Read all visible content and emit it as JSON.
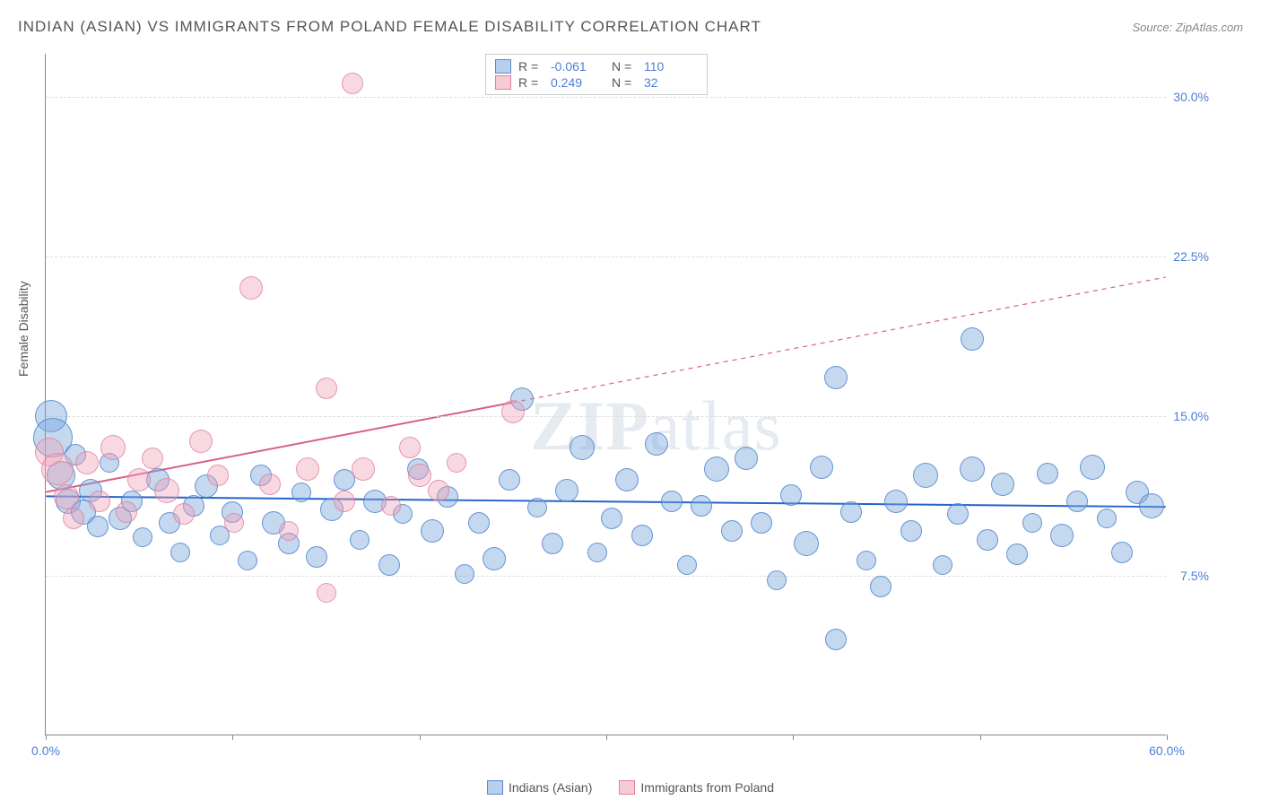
{
  "header": {
    "title": "INDIAN (ASIAN) VS IMMIGRANTS FROM POLAND FEMALE DISABILITY CORRELATION CHART",
    "source": "Source: ZipAtlas.com"
  },
  "chart": {
    "type": "scatter",
    "ylabel": "Female Disability",
    "xlim": [
      0,
      60
    ],
    "ylim": [
      0,
      32
    ],
    "ytick_values": [
      7.5,
      15.0,
      22.5,
      30.0
    ],
    "ytick_labels": [
      "7.5%",
      "15.0%",
      "22.5%",
      "30.0%"
    ],
    "xtick_values": [
      0,
      10,
      20,
      30,
      40,
      50,
      60
    ],
    "xtick_labels": [
      "0.0%",
      "",
      "",
      "",
      "",
      "",
      "60.0%"
    ],
    "background_color": "#ffffff",
    "grid_color": "#dddddd",
    "watermark": "ZIPatlas",
    "series": [
      {
        "name": "Indians (Asian)",
        "color_fill": "#7da8de",
        "color_stroke": "#5082c8",
        "trend": {
          "x1": 0,
          "y1": 11.2,
          "x2": 60,
          "y2": 10.7,
          "color": "#2563c9",
          "width": 2,
          "dash": "none"
        },
        "R": "-0.061",
        "N": "110",
        "points": [
          {
            "x": 0.3,
            "y": 15.0,
            "r": 18
          },
          {
            "x": 0.4,
            "y": 14.0,
            "r": 22
          },
          {
            "x": 0.8,
            "y": 12.2,
            "r": 16
          },
          {
            "x": 1.2,
            "y": 11.0,
            "r": 14
          },
          {
            "x": 1.6,
            "y": 13.2,
            "r": 12
          },
          {
            "x": 2.0,
            "y": 10.5,
            "r": 14
          },
          {
            "x": 2.4,
            "y": 11.5,
            "r": 13
          },
          {
            "x": 2.8,
            "y": 9.8,
            "r": 12
          },
          {
            "x": 3.4,
            "y": 12.8,
            "r": 11
          },
          {
            "x": 4.0,
            "y": 10.2,
            "r": 13
          },
          {
            "x": 4.6,
            "y": 11.0,
            "r": 12
          },
          {
            "x": 5.2,
            "y": 9.3,
            "r": 11
          },
          {
            "x": 6.0,
            "y": 12.0,
            "r": 13
          },
          {
            "x": 6.6,
            "y": 10.0,
            "r": 12
          },
          {
            "x": 7.2,
            "y": 8.6,
            "r": 11
          },
          {
            "x": 7.9,
            "y": 10.8,
            "r": 12
          },
          {
            "x": 8.6,
            "y": 11.7,
            "r": 13
          },
          {
            "x": 9.3,
            "y": 9.4,
            "r": 11
          },
          {
            "x": 10.0,
            "y": 10.5,
            "r": 12
          },
          {
            "x": 10.8,
            "y": 8.2,
            "r": 11
          },
          {
            "x": 11.5,
            "y": 12.2,
            "r": 12
          },
          {
            "x": 12.2,
            "y": 10.0,
            "r": 13
          },
          {
            "x": 13.0,
            "y": 9.0,
            "r": 12
          },
          {
            "x": 13.7,
            "y": 11.4,
            "r": 11
          },
          {
            "x": 14.5,
            "y": 8.4,
            "r": 12
          },
          {
            "x": 15.3,
            "y": 10.6,
            "r": 13
          },
          {
            "x": 16.0,
            "y": 12.0,
            "r": 12
          },
          {
            "x": 16.8,
            "y": 9.2,
            "r": 11
          },
          {
            "x": 17.6,
            "y": 11.0,
            "r": 13
          },
          {
            "x": 18.4,
            "y": 8.0,
            "r": 12
          },
          {
            "x": 19.1,
            "y": 10.4,
            "r": 11
          },
          {
            "x": 19.9,
            "y": 12.5,
            "r": 12
          },
          {
            "x": 20.7,
            "y": 9.6,
            "r": 13
          },
          {
            "x": 21.5,
            "y": 11.2,
            "r": 12
          },
          {
            "x": 22.4,
            "y": 7.6,
            "r": 11
          },
          {
            "x": 23.2,
            "y": 10.0,
            "r": 12
          },
          {
            "x": 24.0,
            "y": 8.3,
            "r": 13
          },
          {
            "x": 24.8,
            "y": 12.0,
            "r": 12
          },
          {
            "x": 25.5,
            "y": 15.8,
            "r": 13
          },
          {
            "x": 26.3,
            "y": 10.7,
            "r": 11
          },
          {
            "x": 27.1,
            "y": 9.0,
            "r": 12
          },
          {
            "x": 27.9,
            "y": 11.5,
            "r": 13
          },
          {
            "x": 28.7,
            "y": 13.5,
            "r": 14
          },
          {
            "x": 29.5,
            "y": 8.6,
            "r": 11
          },
          {
            "x": 30.3,
            "y": 10.2,
            "r": 12
          },
          {
            "x": 31.1,
            "y": 12.0,
            "r": 13
          },
          {
            "x": 31.9,
            "y": 9.4,
            "r": 12
          },
          {
            "x": 32.7,
            "y": 13.7,
            "r": 13
          },
          {
            "x": 33.5,
            "y": 11.0,
            "r": 12
          },
          {
            "x": 34.3,
            "y": 8.0,
            "r": 11
          },
          {
            "x": 35.1,
            "y": 10.8,
            "r": 12
          },
          {
            "x": 35.9,
            "y": 12.5,
            "r": 14
          },
          {
            "x": 36.7,
            "y": 9.6,
            "r": 12
          },
          {
            "x": 37.5,
            "y": 13.0,
            "r": 13
          },
          {
            "x": 38.3,
            "y": 10.0,
            "r": 12
          },
          {
            "x": 39.1,
            "y": 7.3,
            "r": 11
          },
          {
            "x": 39.9,
            "y": 11.3,
            "r": 12
          },
          {
            "x": 40.7,
            "y": 9.0,
            "r": 14
          },
          {
            "x": 41.5,
            "y": 12.6,
            "r": 13
          },
          {
            "x": 42.3,
            "y": 16.8,
            "r": 13
          },
          {
            "x": 42.3,
            "y": 4.5,
            "r": 12
          },
          {
            "x": 43.1,
            "y": 10.5,
            "r": 12
          },
          {
            "x": 43.9,
            "y": 8.2,
            "r": 11
          },
          {
            "x": 44.7,
            "y": 7.0,
            "r": 12
          },
          {
            "x": 45.5,
            "y": 11.0,
            "r": 13
          },
          {
            "x": 46.3,
            "y": 9.6,
            "r": 12
          },
          {
            "x": 47.1,
            "y": 12.2,
            "r": 14
          },
          {
            "x": 48.0,
            "y": 8.0,
            "r": 11
          },
          {
            "x": 48.8,
            "y": 10.4,
            "r": 12
          },
          {
            "x": 49.6,
            "y": 12.5,
            "r": 14
          },
          {
            "x": 49.6,
            "y": 18.6,
            "r": 13
          },
          {
            "x": 50.4,
            "y": 9.2,
            "r": 12
          },
          {
            "x": 51.2,
            "y": 11.8,
            "r": 13
          },
          {
            "x": 52.0,
            "y": 8.5,
            "r": 12
          },
          {
            "x": 52.8,
            "y": 10.0,
            "r": 11
          },
          {
            "x": 53.6,
            "y": 12.3,
            "r": 12
          },
          {
            "x": 54.4,
            "y": 9.4,
            "r": 13
          },
          {
            "x": 55.2,
            "y": 11.0,
            "r": 12
          },
          {
            "x": 56.0,
            "y": 12.6,
            "r": 14
          },
          {
            "x": 56.8,
            "y": 10.2,
            "r": 11
          },
          {
            "x": 57.6,
            "y": 8.6,
            "r": 12
          },
          {
            "x": 58.4,
            "y": 11.4,
            "r": 13
          },
          {
            "x": 59.2,
            "y": 10.8,
            "r": 14
          }
        ]
      },
      {
        "name": "Immigrants from Poland",
        "color_fill": "#f0a0b4",
        "color_stroke": "#dc7896",
        "trend": {
          "x1": 0,
          "y1": 11.4,
          "x2": 60,
          "y2": 21.5,
          "color": "#d85f87",
          "width": 2,
          "dash": "5,5",
          "solid_until": 25
        },
        "R": "0.249",
        "N": "32",
        "points": [
          {
            "x": 0.2,
            "y": 13.3,
            "r": 16
          },
          {
            "x": 0.6,
            "y": 12.5,
            "r": 18
          },
          {
            "x": 1.1,
            "y": 11.2,
            "r": 14
          },
          {
            "x": 1.5,
            "y": 10.2,
            "r": 12
          },
          {
            "x": 2.2,
            "y": 12.8,
            "r": 13
          },
          {
            "x": 2.9,
            "y": 11.0,
            "r": 12
          },
          {
            "x": 3.6,
            "y": 13.5,
            "r": 14
          },
          {
            "x": 4.3,
            "y": 10.5,
            "r": 12
          },
          {
            "x": 5.0,
            "y": 12.0,
            "r": 13
          },
          {
            "x": 5.7,
            "y": 13.0,
            "r": 12
          },
          {
            "x": 6.5,
            "y": 11.5,
            "r": 14
          },
          {
            "x": 7.4,
            "y": 10.4,
            "r": 12
          },
          {
            "x": 8.3,
            "y": 13.8,
            "r": 13
          },
          {
            "x": 9.2,
            "y": 12.2,
            "r": 12
          },
          {
            "x": 10.1,
            "y": 10.0,
            "r": 11
          },
          {
            "x": 11.0,
            "y": 21.0,
            "r": 13
          },
          {
            "x": 12.0,
            "y": 11.8,
            "r": 12
          },
          {
            "x": 13.0,
            "y": 9.6,
            "r": 11
          },
          {
            "x": 14.0,
            "y": 12.5,
            "r": 13
          },
          {
            "x": 15.0,
            "y": 16.3,
            "r": 12
          },
          {
            "x": 15.0,
            "y": 6.7,
            "r": 11
          },
          {
            "x": 16.0,
            "y": 11.0,
            "r": 12
          },
          {
            "x": 16.4,
            "y": 30.6,
            "r": 12
          },
          {
            "x": 17.0,
            "y": 12.5,
            "r": 13
          },
          {
            "x": 18.5,
            "y": 10.8,
            "r": 11
          },
          {
            "x": 19.5,
            "y": 13.5,
            "r": 12
          },
          {
            "x": 20.0,
            "y": 12.2,
            "r": 13
          },
          {
            "x": 21.0,
            "y": 11.5,
            "r": 12
          },
          {
            "x": 22.0,
            "y": 12.8,
            "r": 11
          },
          {
            "x": 25.0,
            "y": 15.2,
            "r": 13
          }
        ]
      }
    ],
    "legend_bottom": [
      {
        "label": "Indians (Asian)",
        "swatch": "blue"
      },
      {
        "label": "Immigrants from Poland",
        "swatch": "pink"
      }
    ]
  }
}
